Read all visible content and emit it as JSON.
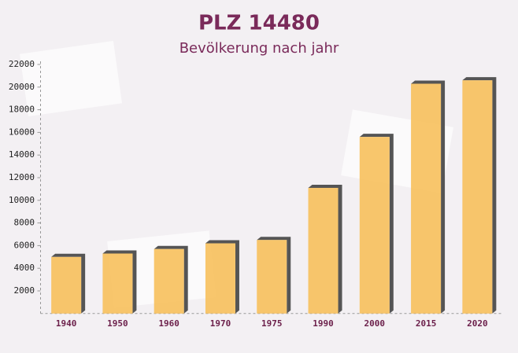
{
  "chart_data": {
    "type": "bar",
    "title": "PLZ 14480",
    "subtitle": "Bevölkerung nach jahr",
    "categories": [
      "1940",
      "1950",
      "1960",
      "1970",
      "1975",
      "1990",
      "2000",
      "2015",
      "2020"
    ],
    "values": [
      5000,
      5300,
      5700,
      6200,
      6500,
      11100,
      15600,
      20300,
      20600
    ],
    "color": "#f7c05c",
    "ylim": [
      0,
      22000
    ],
    "yticks": [
      2000,
      4000,
      6000,
      8000,
      10000,
      12000,
      14000,
      16000,
      18000,
      20000,
      22000
    ]
  }
}
